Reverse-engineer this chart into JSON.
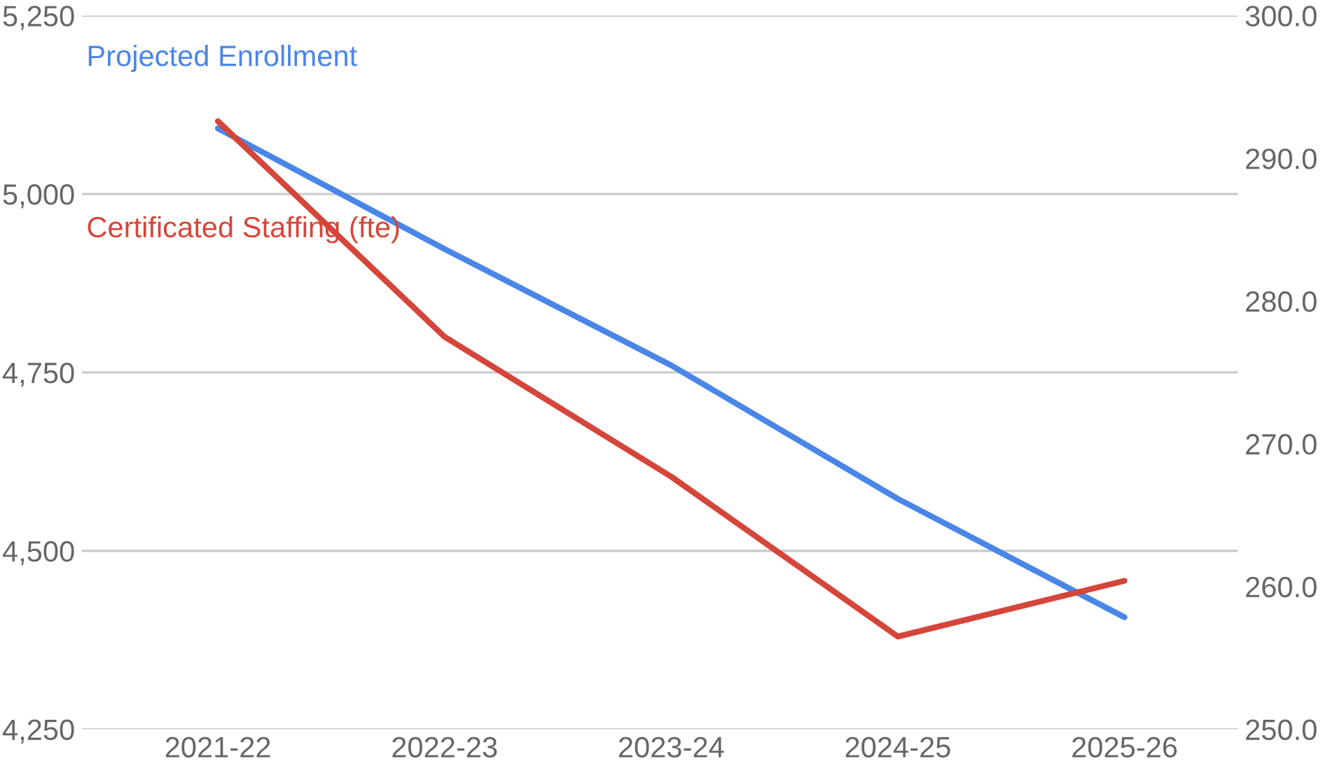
{
  "chart_data": {
    "type": "line",
    "categories": [
      "2021-22",
      "2022-23",
      "2023-24",
      "2024-25",
      "2025-26"
    ],
    "series": [
      {
        "name": "Projected Enrollment",
        "color": "#4a86e8",
        "values": [
          5092,
          4923,
          4760,
          4573,
          4407
        ]
      },
      {
        "name": "Certificated Staffing (fte)",
        "color": "#d5463a",
        "axis": "y2",
        "values": [
          292.6,
          277.5,
          267.7,
          256.5,
          260.4
        ]
      }
    ],
    "ylim": [
      4250,
      5250
    ],
    "yticks": [
      {
        "value": 4250,
        "label": "4,250"
      },
      {
        "value": 4500,
        "label": "4,500"
      },
      {
        "value": 4750,
        "label": "4,750"
      },
      {
        "value": 5000,
        "label": "5,000"
      },
      {
        "value": 5250,
        "label": "5,250"
      }
    ],
    "y2lim": [
      250,
      300
    ],
    "y2ticks": [
      {
        "value": 250,
        "label": "250.0"
      },
      {
        "value": 260,
        "label": "260.0"
      },
      {
        "value": 270,
        "label": "270.0"
      },
      {
        "value": 280,
        "label": "280.0"
      },
      {
        "value": 290,
        "label": "290.0"
      },
      {
        "value": 300,
        "label": "300.0"
      }
    ],
    "grid": "y",
    "legend": false
  }
}
